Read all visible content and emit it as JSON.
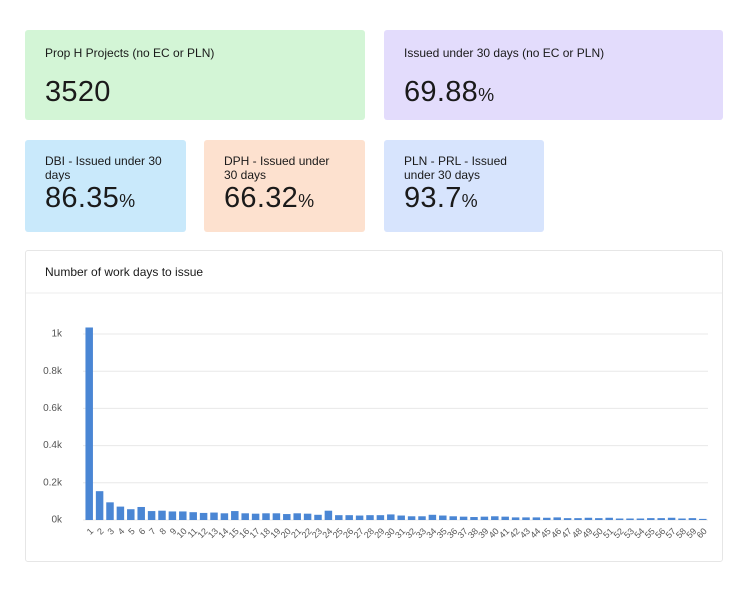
{
  "cards": [
    {
      "title": "Prop H Projects (no EC or PLN)",
      "value": 3520
    },
    {
      "title": "Issued under 30 days (no EC or PLN)",
      "value": 69.88,
      "unit": "%"
    },
    {
      "title": "DBI - Issued under 30 days",
      "value": 86.35,
      "unit": "%"
    },
    {
      "title": "DPH - Issued under 30 days",
      "value": 66.32,
      "unit": "%"
    },
    {
      "title": "PLN - PRL - Issued under 30 days",
      "value": 93.7,
      "unit": "%"
    }
  ],
  "chart_data": {
    "type": "bar",
    "title": "Number of work days to issue",
    "categories": [
      "1",
      "2",
      "3",
      "4",
      "5",
      "6",
      "7",
      "8",
      "9",
      "10",
      "11",
      "12",
      "13",
      "14",
      "15",
      "16",
      "17",
      "18",
      "19",
      "20",
      "21",
      "22",
      "23",
      "24",
      "25",
      "26",
      "27",
      "28",
      "29",
      "30",
      "31",
      "32",
      "33",
      "34",
      "35",
      "36",
      "37",
      "38",
      "39",
      "40",
      "41",
      "42",
      "43",
      "44",
      "45",
      "46",
      "47",
      "48",
      "49",
      "50",
      "51",
      "52",
      "53",
      "54",
      "55",
      "56",
      "57",
      "58",
      "59",
      "60"
    ],
    "values": [
      1035,
      155,
      95,
      72,
      58,
      70,
      48,
      50,
      46,
      46,
      42,
      38,
      40,
      36,
      48,
      36,
      34,
      36,
      36,
      32,
      36,
      34,
      28,
      50,
      26,
      26,
      24,
      26,
      26,
      30,
      24,
      20,
      20,
      28,
      24,
      20,
      18,
      16,
      18,
      20,
      18,
      14,
      14,
      14,
      12,
      14,
      10,
      10,
      12,
      10,
      12,
      8,
      8,
      8,
      10,
      10,
      12,
      8,
      10,
      6
    ],
    "color": "#4a86d4",
    "ylim": [
      0,
      1050
    ],
    "yticks": [
      {
        "value": 0,
        "label": "0k"
      },
      {
        "value": 200,
        "label": "0.2k"
      },
      {
        "value": 400,
        "label": "0.4k"
      },
      {
        "value": 600,
        "label": "0.6k"
      },
      {
        "value": 800,
        "label": "0.8k"
      },
      {
        "value": 1000,
        "label": "1k"
      }
    ],
    "grid": true
  }
}
